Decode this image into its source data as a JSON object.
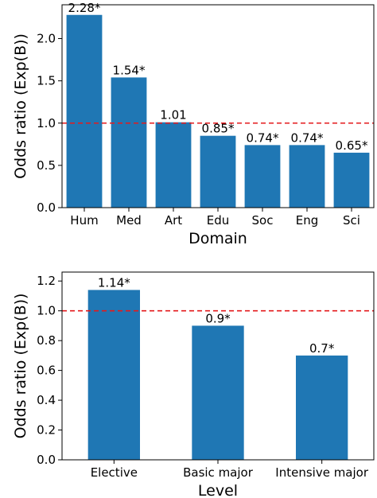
{
  "chart_data": [
    {
      "type": "bar",
      "categories": [
        "Hum",
        "Med",
        "Art",
        "Edu",
        "Soc",
        "Eng",
        "Sci"
      ],
      "values": [
        2.28,
        1.54,
        1.01,
        0.85,
        0.74,
        0.74,
        0.65
      ],
      "data_labels": [
        "2.28*",
        "1.54*",
        "1.01",
        "0.85*",
        "0.74*",
        "0.74*",
        "0.65*"
      ],
      "xlabel": "Domain",
      "ylabel": "Odds ratio (Exp(B))",
      "ylim": [
        0,
        2.4
      ],
      "yticks": [
        0.0,
        0.5,
        1.0,
        1.5,
        2.0
      ],
      "ytick_labels": [
        "0.0",
        "0.5",
        "1.0",
        "1.5",
        "2.0"
      ],
      "reference_line": {
        "y": 1.0,
        "style": "dashed",
        "color": "#e41a1c"
      },
      "bar_color": "#1f77b4",
      "grid": false
    },
    {
      "type": "bar",
      "categories": [
        "Elective",
        "Basic major",
        "Intensive major"
      ],
      "values": [
        1.14,
        0.9,
        0.7
      ],
      "data_labels": [
        "1.14*",
        "0.9*",
        "0.7*"
      ],
      "xlabel": "Level",
      "ylabel": "Odds ratio (Exp(B))",
      "ylim": [
        0,
        1.26
      ],
      "yticks": [
        0.0,
        0.2,
        0.4,
        0.6,
        0.8,
        1.0,
        1.2
      ],
      "ytick_labels": [
        "0.0",
        "0.2",
        "0.4",
        "0.6",
        "0.8",
        "1.0",
        "1.2"
      ],
      "reference_line": {
        "y": 1.0,
        "style": "dashed",
        "color": "#e41a1c"
      },
      "bar_color": "#1f77b4",
      "grid": false
    }
  ]
}
